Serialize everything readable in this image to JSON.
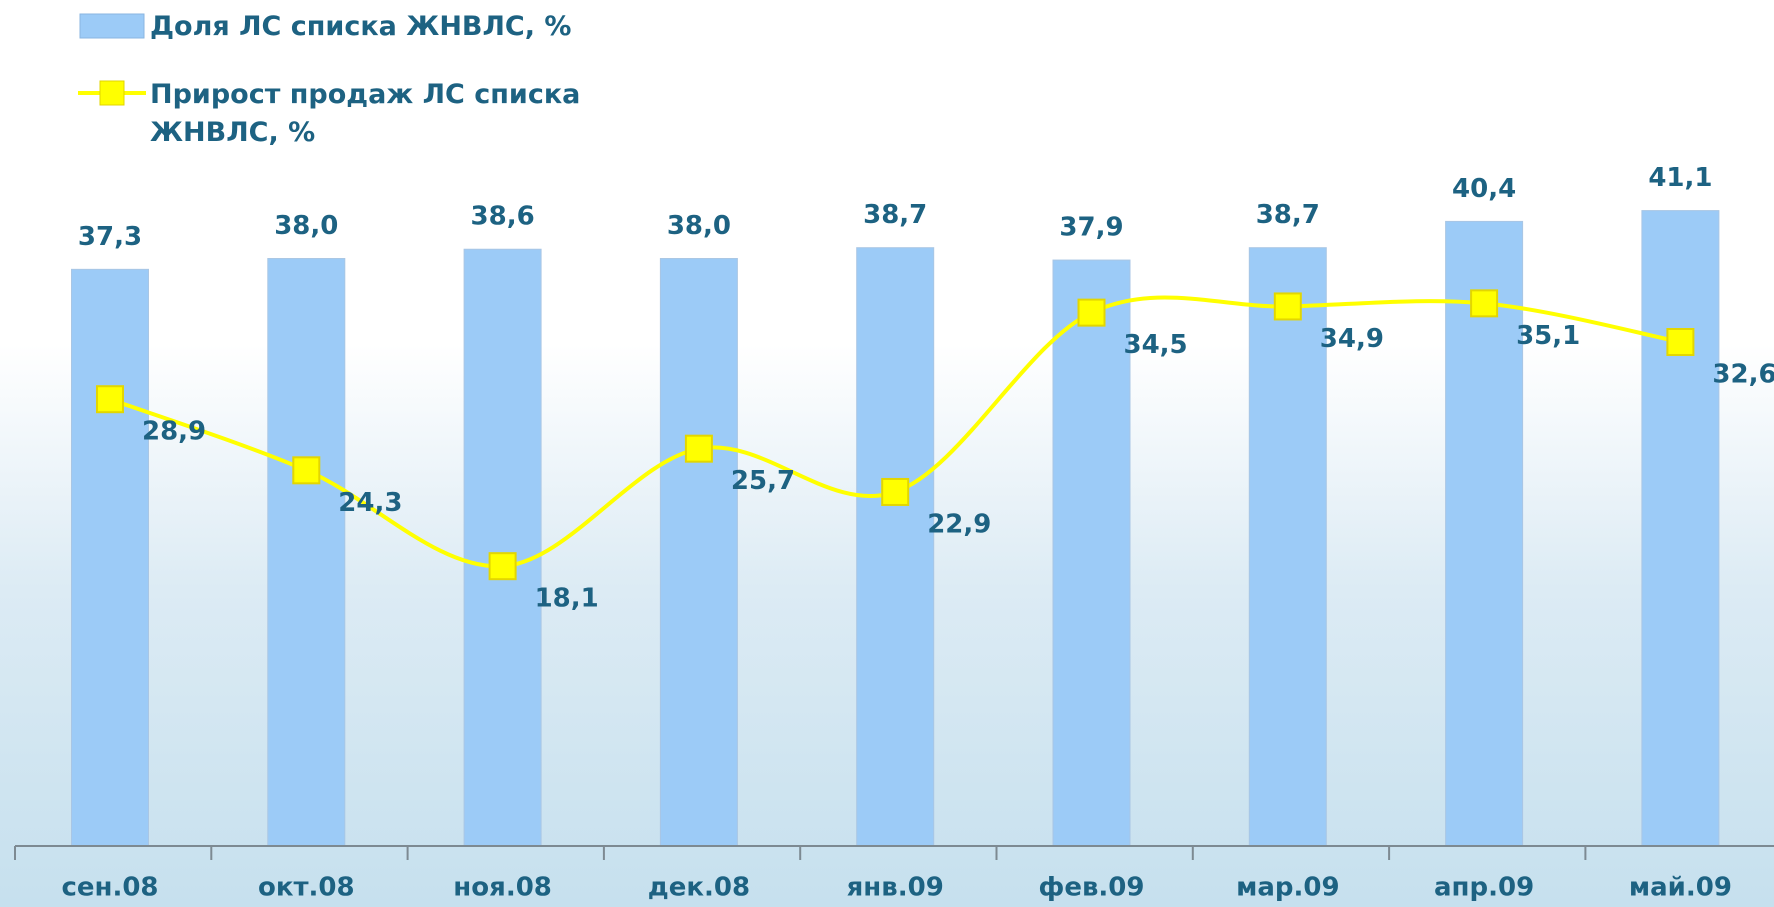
{
  "chart_data": {
    "type": "bar",
    "categories": [
      "сен.08",
      "окт.08",
      "ноя.08",
      "дек.08",
      "янв.09",
      "фев.09",
      "мар.09",
      "апр.09",
      "май.09"
    ],
    "series": [
      {
        "name": "Доля ЛС списка ЖНВЛС, %",
        "type": "bar",
        "color": "#9ccbf7",
        "values": [
          37.3,
          38.0,
          38.6,
          38.0,
          38.7,
          37.9,
          38.7,
          40.4,
          41.1
        ],
        "value_labels": [
          "37,3",
          "38,0",
          "38,6",
          "38,0",
          "38,7",
          "37,9",
          "38,7",
          "40,4",
          "41,1"
        ]
      },
      {
        "name": "Прирост продаж ЛС списка ЖНВЛС, %",
        "type": "line",
        "color": "#ffff00",
        "values": [
          28.9,
          24.3,
          18.1,
          25.7,
          22.9,
          34.5,
          34.9,
          35.1,
          32.6
        ],
        "value_labels": [
          "28,9",
          "24,3",
          "18,1",
          "25,7",
          "22,9",
          "34,5",
          "34,9",
          "35,1",
          "32,6"
        ]
      }
    ],
    "ylim": [
      0,
      50
    ]
  }
}
